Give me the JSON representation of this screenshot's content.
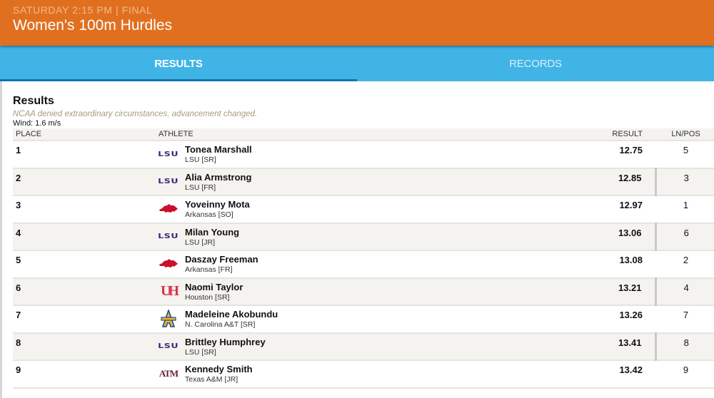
{
  "header": {
    "meta": "SATURDAY 2:15 PM | FINAL",
    "title": "Women's 100m Hurdles"
  },
  "tabs": [
    {
      "label": "RESULTS",
      "active": true
    },
    {
      "label": "RECORDS",
      "active": false
    }
  ],
  "results": {
    "title": "Results",
    "note": "NCAA denied extraordinary circumstances, advancement changed.",
    "wind": "Wind: 1.6 m/s",
    "columns": {
      "place": "PLACE",
      "athlete": "ATHLETE",
      "result": "RESULT",
      "lnpos": "LN/POS"
    },
    "rows": [
      {
        "place": "1",
        "name": "Tonea Marshall",
        "school": "LSU [SR]",
        "logo": "lsu-logo",
        "result": "12.75",
        "lnpos": "5"
      },
      {
        "place": "2",
        "name": "Alia Armstrong",
        "school": "LSU [FR]",
        "logo": "lsu-logo",
        "result": "12.85",
        "lnpos": "3"
      },
      {
        "place": "3",
        "name": "Yoveinny Mota",
        "school": "Arkansas [SO]",
        "logo": "arkansas-razorback-logo",
        "result": "12.97",
        "lnpos": "1"
      },
      {
        "place": "4",
        "name": "Milan Young",
        "school": "LSU [JR]",
        "logo": "lsu-logo",
        "result": "13.06",
        "lnpos": "6"
      },
      {
        "place": "5",
        "name": "Daszay Freeman",
        "school": "Arkansas [FR]",
        "logo": "arkansas-razorback-logo",
        "result": "13.08",
        "lnpos": "2"
      },
      {
        "place": "6",
        "name": "Naomi Taylor",
        "school": "Houston [SR]",
        "logo": "houston-uh-logo",
        "result": "13.21",
        "lnpos": "4"
      },
      {
        "place": "7",
        "name": "Madeleine Akobundu",
        "school": "N. Carolina A&T [SR]",
        "logo": "nc-at-aggies-logo",
        "result": "13.26",
        "lnpos": "7"
      },
      {
        "place": "8",
        "name": "Brittley Humphrey",
        "school": "LSU [SR]",
        "logo": "lsu-logo",
        "result": "13.41",
        "lnpos": "8"
      },
      {
        "place": "9",
        "name": "Kennedy Smith",
        "school": "Texas A&M [JR]",
        "logo": "texas-am-logo",
        "result": "13.42",
        "lnpos": "9"
      }
    ]
  },
  "logos": {
    "lsu_text": "LSU",
    "uh_text": "UH",
    "tamu_text": "ATM"
  },
  "colors": {
    "header_bg": "#e07020",
    "tabs_bg": "#41b4e6",
    "tab_underline": "#0e73b5",
    "lsu_purple": "#3d2a7d",
    "arkansas_red": "#c8102e",
    "houston_red": "#d8344a",
    "ncat_gold": "#f2b233",
    "ncat_blue": "#1f4e8c",
    "tamu_maroon": "#6b1b2e"
  }
}
